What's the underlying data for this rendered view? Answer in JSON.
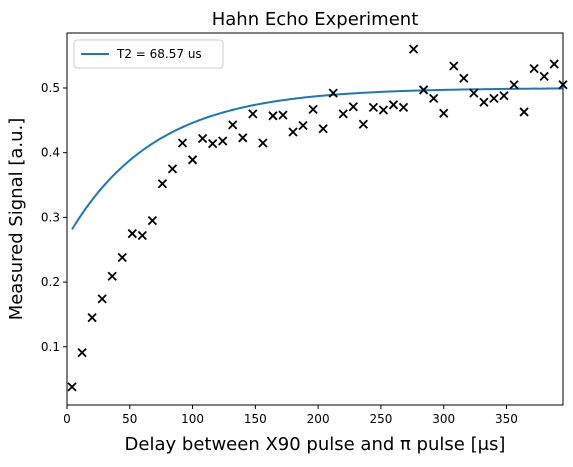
{
  "chart_data": {
    "type": "scatter",
    "title": "Hahn Echo Experiment",
    "xlabel": "Delay between X90 pulse and π pulse [μs]",
    "ylabel": "Measured Signal [a.u.]",
    "xlim": [
      0,
      395
    ],
    "ylim": [
      0.01,
      0.585
    ],
    "xticks": [
      "0",
      "50",
      "100",
      "150",
      "200",
      "250",
      "300",
      "350"
    ],
    "yticks": [
      "0.1",
      "0.2",
      "0.3",
      "0.4",
      "0.5"
    ],
    "xtick_values": [
      0,
      50,
      100,
      150,
      200,
      250,
      300,
      350
    ],
    "ytick_values": [
      0.1,
      0.2,
      0.3,
      0.4,
      0.5
    ],
    "legend": {
      "placement": "top-left",
      "entries": [
        "T2 = 68.57 us"
      ]
    },
    "grid": false,
    "series": [
      {
        "name": "T2 = 68.57 us",
        "kind": "line",
        "color": "#1f77b4",
        "model": {
          "amplitude": 0.5,
          "offset": 0.4633,
          "T2": 68.57,
          "x_start": 4,
          "x_end": 395
        }
      },
      {
        "kind": "scatter",
        "marker": "x",
        "color": "#000000",
        "x": [
          4,
          12,
          20,
          28,
          36,
          44,
          52,
          60,
          68,
          76,
          84,
          92,
          100,
          108,
          116,
          124,
          132,
          140,
          148,
          156,
          164,
          172,
          180,
          188,
          196,
          204,
          212,
          220,
          228,
          236,
          244,
          252,
          260,
          268,
          276,
          284,
          292,
          300,
          308,
          316,
          324,
          332,
          340,
          348,
          356,
          364,
          372,
          380,
          388,
          395
        ],
        "y": [
          0.038,
          0.091,
          0.145,
          0.174,
          0.209,
          0.238,
          0.275,
          0.272,
          0.295,
          0.352,
          0.375,
          0.415,
          0.389,
          0.422,
          0.414,
          0.418,
          0.443,
          0.423,
          0.46,
          0.415,
          0.457,
          0.458,
          0.432,
          0.442,
          0.467,
          0.437,
          0.492,
          0.46,
          0.471,
          0.444,
          0.47,
          0.466,
          0.474,
          0.47,
          0.56,
          0.497,
          0.484,
          0.461,
          0.534,
          0.515,
          0.492,
          0.478,
          0.484,
          0.488,
          0.505,
          0.463,
          0.53,
          0.518,
          0.537,
          0.505
        ]
      }
    ]
  }
}
